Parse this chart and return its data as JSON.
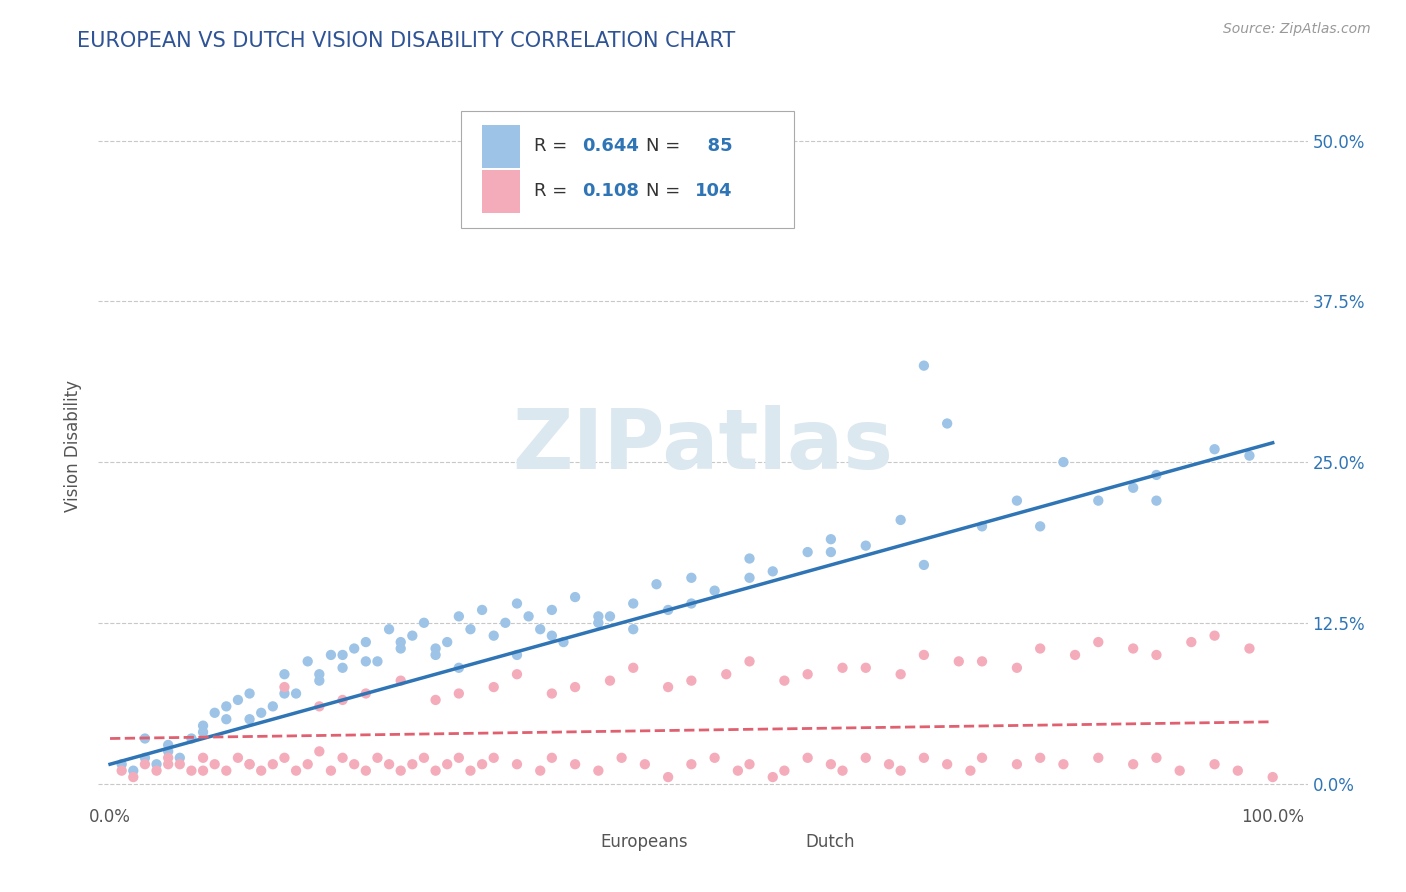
{
  "title": "EUROPEAN VS DUTCH VISION DISABILITY CORRELATION CHART",
  "source": "Source: ZipAtlas.com",
  "ylabel": "Vision Disability",
  "xlim": [
    -1,
    103
  ],
  "ylim": [
    -1.5,
    54
  ],
  "ytick_positions": [
    0,
    12.5,
    25.0,
    37.5,
    50.0
  ],
  "ytick_labels_right": [
    "0.0%",
    "12.5%",
    "25.0%",
    "37.5%",
    "50.0%"
  ],
  "xtick_positions": [
    0,
    100
  ],
  "xtick_labels": [
    "0.0%",
    "100.0%"
  ],
  "background_color": "#ffffff",
  "grid_color": "#c8c8c8",
  "europeans_color": "#9DC3E6",
  "dutch_color": "#F4ACBA",
  "europeans_line_color": "#2F75B6",
  "dutch_line_color": "#E06070",
  "legend_R_european": "0.644",
  "legend_N_european": "85",
  "legend_R_dutch": "0.108",
  "legend_N_dutch": "104",
  "title_color": "#2F5496",
  "blue_text_color": "#2F75B6",
  "watermark": "ZIPatlas",
  "watermark_color": "#dce8f0",
  "eu_x": [
    1,
    2,
    3,
    4,
    5,
    6,
    7,
    8,
    9,
    10,
    11,
    12,
    13,
    14,
    15,
    16,
    17,
    18,
    19,
    20,
    21,
    22,
    23,
    24,
    25,
    26,
    27,
    28,
    29,
    30,
    31,
    32,
    33,
    34,
    35,
    36,
    37,
    38,
    39,
    40,
    42,
    43,
    45,
    47,
    48,
    50,
    52,
    55,
    57,
    60,
    62,
    65,
    68,
    70,
    72,
    75,
    78,
    82,
    85,
    88,
    90,
    95,
    98,
    3,
    5,
    8,
    10,
    12,
    15,
    18,
    20,
    22,
    25,
    28,
    30,
    35,
    38,
    42,
    45,
    50,
    55,
    62,
    70,
    80,
    90
  ],
  "eu_y": [
    1.5,
    1.0,
    2.0,
    1.5,
    2.5,
    2.0,
    3.5,
    4.0,
    5.5,
    5.0,
    6.5,
    7.0,
    5.5,
    6.0,
    8.5,
    7.0,
    9.5,
    8.0,
    10.0,
    9.0,
    10.5,
    11.0,
    9.5,
    12.0,
    10.5,
    11.5,
    12.5,
    10.0,
    11.0,
    13.0,
    12.0,
    13.5,
    11.5,
    12.5,
    14.0,
    13.0,
    12.0,
    13.5,
    11.0,
    14.5,
    12.5,
    13.0,
    14.0,
    15.5,
    13.5,
    16.0,
    15.0,
    17.5,
    16.5,
    18.0,
    19.0,
    18.5,
    20.5,
    32.5,
    28.0,
    20.0,
    22.0,
    25.0,
    22.0,
    23.0,
    24.0,
    26.0,
    25.5,
    3.5,
    3.0,
    4.5,
    6.0,
    5.0,
    7.0,
    8.5,
    10.0,
    9.5,
    11.0,
    10.5,
    9.0,
    10.0,
    11.5,
    13.0,
    12.0,
    14.0,
    16.0,
    18.0,
    17.0,
    20.0,
    22.0
  ],
  "du_x": [
    1,
    2,
    3,
    4,
    5,
    6,
    7,
    8,
    9,
    10,
    11,
    12,
    13,
    14,
    15,
    16,
    17,
    18,
    19,
    20,
    21,
    22,
    23,
    24,
    25,
    26,
    27,
    28,
    29,
    30,
    31,
    32,
    33,
    35,
    37,
    38,
    40,
    42,
    44,
    46,
    48,
    50,
    52,
    54,
    55,
    57,
    58,
    60,
    62,
    63,
    65,
    67,
    68,
    70,
    72,
    74,
    75,
    78,
    80,
    82,
    85,
    88,
    90,
    92,
    95,
    97,
    100,
    15,
    20,
    25,
    30,
    35,
    40,
    45,
    50,
    55,
    60,
    65,
    70,
    75,
    80,
    85,
    90,
    95,
    18,
    22,
    28,
    33,
    38,
    43,
    48,
    53,
    58,
    63,
    68,
    73,
    78,
    83,
    88,
    93,
    98,
    5,
    8,
    12
  ],
  "du_y": [
    1.0,
    0.5,
    1.5,
    1.0,
    2.0,
    1.5,
    1.0,
    2.0,
    1.5,
    1.0,
    2.0,
    1.5,
    1.0,
    1.5,
    2.0,
    1.0,
    1.5,
    2.5,
    1.0,
    2.0,
    1.5,
    1.0,
    2.0,
    1.5,
    1.0,
    1.5,
    2.0,
    1.0,
    1.5,
    2.0,
    1.0,
    1.5,
    2.0,
    1.5,
    1.0,
    2.0,
    1.5,
    1.0,
    2.0,
    1.5,
    0.5,
    1.5,
    2.0,
    1.0,
    1.5,
    0.5,
    1.0,
    2.0,
    1.5,
    1.0,
    2.0,
    1.5,
    1.0,
    2.0,
    1.5,
    1.0,
    2.0,
    1.5,
    2.0,
    1.5,
    2.0,
    1.5,
    2.0,
    1.0,
    1.5,
    1.0,
    0.5,
    7.5,
    6.5,
    8.0,
    7.0,
    8.5,
    7.5,
    9.0,
    8.0,
    9.5,
    8.5,
    9.0,
    10.0,
    9.5,
    10.5,
    11.0,
    10.0,
    11.5,
    6.0,
    7.0,
    6.5,
    7.5,
    7.0,
    8.0,
    7.5,
    8.5,
    8.0,
    9.0,
    8.5,
    9.5,
    9.0,
    10.0,
    10.5,
    11.0,
    10.5,
    1.5,
    1.0,
    1.5
  ],
  "eu_line_y0": 1.5,
  "eu_line_y1": 26.5,
  "du_line_y0": 3.5,
  "du_line_y1": 4.8
}
